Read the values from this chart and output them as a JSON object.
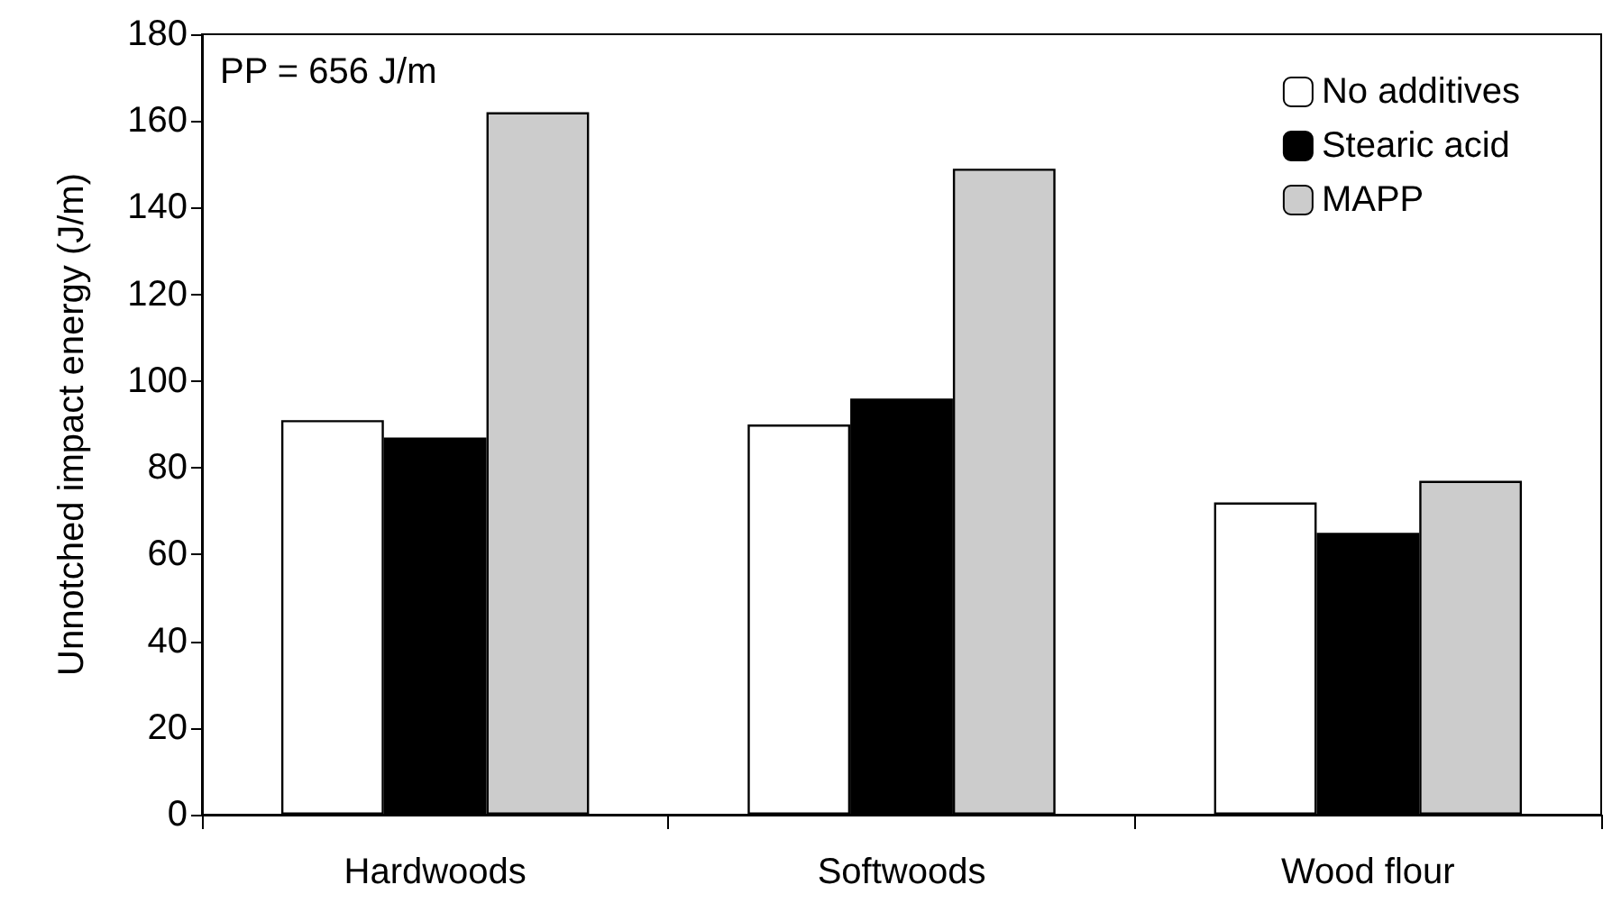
{
  "chart_data": {
    "type": "bar",
    "ylabel": "Unnotched impact energy (J/m)",
    "categories": [
      "Hardwoods",
      "Softwoods",
      "Wood flour"
    ],
    "series": [
      {
        "name": "No additives",
        "color": "#ffffff",
        "values": [
          91,
          90,
          72
        ]
      },
      {
        "name": "Stearic acid",
        "color": "#000000",
        "values": [
          87,
          96,
          65
        ]
      },
      {
        "name": "MAPP",
        "color": "#cccccc",
        "values": [
          162,
          149,
          77
        ]
      }
    ],
    "ylim": [
      0,
      180
    ],
    "yticks": [
      0,
      20,
      40,
      60,
      80,
      100,
      120,
      140,
      160,
      180
    ],
    "annotations": [
      "PP = 656 J/m"
    ],
    "grid": false,
    "legend": "top right"
  }
}
